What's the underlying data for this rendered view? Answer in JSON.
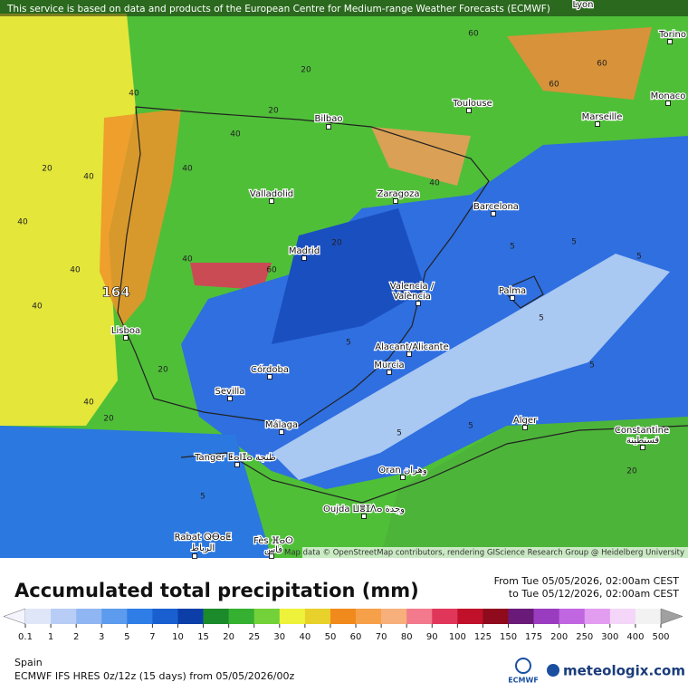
{
  "header": {
    "attribution": "This service is based on data and products of the European Centre for Medium-range Weather Forecasts (ECMWF)"
  },
  "map": {
    "cities": [
      "Lyon",
      "Torino",
      "Toulouse",
      "Monaco",
      "Marseille",
      "Bilbao",
      "Valladolid",
      "Zaragoza",
      "Barcelona",
      "Madrid",
      "Valencia /",
      "València",
      "Palma",
      "Lisboa",
      "Alacant/Alicante",
      "Murcia",
      "Córdoba",
      "Sevilla",
      "Málaga",
      "Alger",
      "Constantine",
      "قسنطينة",
      "Tanger ⵟⴰⵏⵊⴰ طنجة",
      "Oran وهران",
      "Oujda ⵡⴻⵊⴷⴰ وجدة",
      "Rabat ⵕⴱⴰⵟ",
      "الرباط",
      "Fès ⴼⴰⵙ",
      "فاس"
    ],
    "max_label": "164",
    "contour_labels": [
      "40",
      "40",
      "40",
      "40",
      "40",
      "40",
      "20",
      "20",
      "40",
      "20",
      "20",
      "40",
      "60",
      "60",
      "60",
      "40",
      "60",
      "40",
      "20",
      "5",
      "5",
      "5",
      "5",
      "5",
      "5",
      "5",
      "5",
      "5",
      "20",
      "20",
      "5"
    ],
    "credit": "Map data © OpenStreetMap contributors, rendering GIScience Research Group @ Heidelberg University"
  },
  "legend": {
    "title": "Accumulated total precipitation (mm)",
    "period_from": "From Tue 05/05/2026, 02:00am CEST",
    "period_to": "to Tue 05/12/2026, 02:00am CEST",
    "ticks": [
      0.1,
      1,
      2,
      3,
      5,
      7,
      10,
      15,
      20,
      25,
      30,
      40,
      50,
      60,
      70,
      80,
      90,
      100,
      125,
      150,
      175,
      200,
      250,
      300,
      400,
      500
    ],
    "colors": [
      "#f4f4ff",
      "#dfe6f7",
      "#b7cdf5",
      "#8fb6f2",
      "#5c9bed",
      "#2f7de6",
      "#1a5fd0",
      "#0c3ea8",
      "#1b8a2a",
      "#36b030",
      "#73d13a",
      "#eef23a",
      "#e8d12a",
      "#f08a1c",
      "#f6a04a",
      "#f7b07c",
      "#f27a8c",
      "#e0365a",
      "#c0102a",
      "#8e0a1c",
      "#6a1a78",
      "#9a3cc0",
      "#c066e0",
      "#e29cf0",
      "#f4d6f8",
      "#f2f2f2",
      "#a0a0a0"
    ]
  },
  "footer": {
    "region": "Spain",
    "model": "ECMWF IFS HRES 0z/12z (15 days) from 05/05/2026/00z",
    "logo": "ECMWF",
    "brand": "meteologix.com"
  }
}
